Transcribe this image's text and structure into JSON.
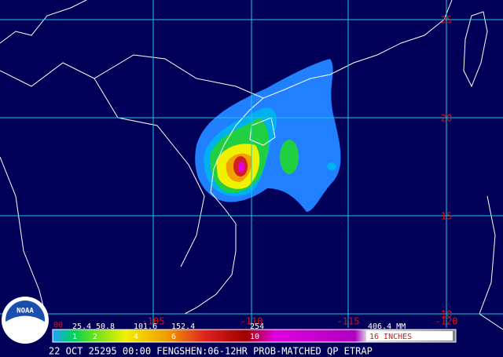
{
  "map": {
    "caption": "22 OCT 25295 00:00 FENGSHEN:06-12HR PROB-MATCHED QP ETRAP",
    "lat_labels": [
      "25",
      "20",
      "15",
      "10"
    ],
    "lon_labels": [
      "-105",
      "-110",
      "-115",
      "-120"
    ],
    "legend": {
      "mm_labels": [
        "00",
        "25.4",
        "50.8",
        "101.6",
        "152.4",
        "254",
        "406.4 MM"
      ],
      "inch_labels": [
        "1",
        "2",
        "4",
        "6",
        "10",
        "16 INCHES"
      ]
    },
    "logo": "NOAA"
  }
}
